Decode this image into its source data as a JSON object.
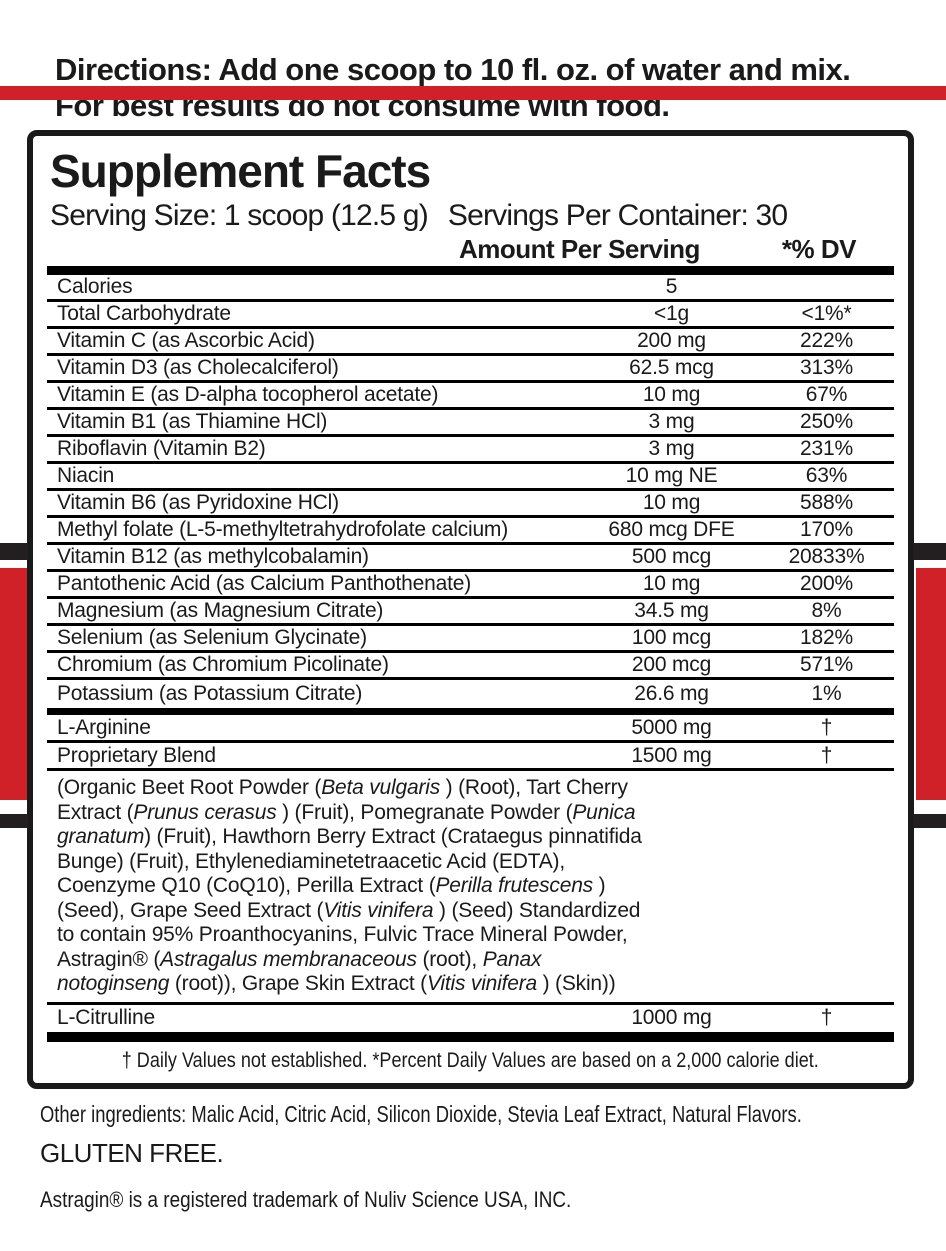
{
  "colors": {
    "accent_red": "#cf2127",
    "bar_black": "#000000",
    "text_black": "#1a1a1a"
  },
  "directions": {
    "line1": "Directions: Add one scoop to 10 fl. oz. of water and mix.",
    "line2": "For best results do not consume with food."
  },
  "facts": {
    "title": "Supplement Facts",
    "serving_size": "Serving Size: 1 scoop (12.5 g)",
    "servings_per_container": "Servings Per Container: 30",
    "col_amount": "Amount Per Serving",
    "col_dv": "*% DV",
    "rows": [
      {
        "name": "Calories",
        "amount": "5",
        "dv": ""
      },
      {
        "name": "Total Carbohydrate",
        "amount": "<1g",
        "dv": "<1%*"
      },
      {
        "name": "Vitamin C (as Ascorbic Acid)",
        "amount": "200 mg",
        "dv": "222%"
      },
      {
        "name": "Vitamin D3 (as Cholecalciferol)",
        "amount": "62.5 mcg",
        "dv": "313%"
      },
      {
        "name": "Vitamin E (as D-alpha tocopherol acetate)",
        "amount": "10 mg",
        "dv": "67%"
      },
      {
        "name": "Vitamin B1 (as Thiamine HCl)",
        "amount": "3 mg",
        "dv": "250%"
      },
      {
        "name": "Riboflavin (Vitamin B2)",
        "amount": "3 mg",
        "dv": "231%"
      },
      {
        "name": "Niacin",
        "amount": "10 mg NE",
        "dv": "63%"
      },
      {
        "name": "Vitamin B6 (as Pyridoxine HCl)",
        "amount": "10 mg",
        "dv": "588%"
      },
      {
        "name": "Methyl folate (L-5-methyltetrahydrofolate calcium)",
        "amount": "680 mcg DFE",
        "dv": "170%"
      },
      {
        "name": "Vitamin B12 (as methylcobalamin)",
        "amount": "500 mcg",
        "dv": "20833%"
      },
      {
        "name": "Pantothenic Acid (as Calcium Panthothenate)",
        "amount": "10 mg",
        "dv": "200%"
      },
      {
        "name": "Magnesium (as Magnesium Citrate)",
        "amount": "34.5 mg",
        "dv": "8%"
      },
      {
        "name": "Selenium (as Selenium Glycinate)",
        "amount": "100 mcg",
        "dv": "182%"
      },
      {
        "name": "Chromium (as Chromium Picolinate)",
        "amount": "200 mcg",
        "dv": "571%"
      },
      {
        "name": "Potassium (as Potassium Citrate)",
        "amount": "26.6 mg",
        "dv": "1%"
      },
      {
        "name": "L-Arginine",
        "amount": "5000 mg",
        "dv": "†"
      },
      {
        "name": "Proprietary Blend",
        "amount": "1500 mg",
        "dv": "†"
      },
      {
        "name": "L-Citrulline",
        "amount": "1000 mg",
        "dv": "†"
      }
    ],
    "blend_description": [
      [
        {
          "t": "(Organic Beet Root Powder ("
        },
        {
          "t": "Beta vulgaris",
          "i": true
        },
        {
          "t": " ) (Root), Tart Cherry"
        }
      ],
      [
        {
          "t": "Extract ("
        },
        {
          "t": "Prunus cerasus",
          "i": true
        },
        {
          "t": " ) (Fruit), Pomegranate Powder ("
        },
        {
          "t": "Punica",
          "i": true
        }
      ],
      [
        {
          "t": "granatum",
          "i": true
        },
        {
          "t": ") (Fruit), Hawthorn Berry Extract (Crataegus pinnatifida"
        }
      ],
      [
        {
          "t": "Bunge) (Fruit), Ethylenediaminetetraacetic Acid (EDTA),"
        }
      ],
      [
        {
          "t": "Coenzyme Q10 (CoQ10), Perilla Extract ("
        },
        {
          "t": "Perilla frutescens",
          "i": true
        },
        {
          "t": " )"
        }
      ],
      [
        {
          "t": "(Seed), Grape Seed Extract ("
        },
        {
          "t": "Vitis vinifera",
          "i": true
        },
        {
          "t": " ) (Seed) Standardized"
        }
      ],
      [
        {
          "t": "to contain 95% Proanthocyanins,  Fulvic Trace Mineral Powder,"
        }
      ],
      [
        {
          "t": "Astragin® ("
        },
        {
          "t": "Astragalus membranaceous",
          "i": true
        },
        {
          "t": "  (root), "
        },
        {
          "t": "Panax",
          "i": true
        }
      ],
      [
        {
          "t": "notoginseng",
          "i": true
        },
        {
          "t": "  (root)), Grape Skin Extract ("
        },
        {
          "t": "Vitis vinifera",
          "i": true
        },
        {
          "t": " ) (Skin))"
        }
      ]
    ],
    "footnote": "† Daily Values not established.  *Percent Daily Values are based on a 2,000 calorie diet."
  },
  "bottom": {
    "other_ingredients": "Other ingredients:  Malic Acid, Citric Acid, Silicon Dioxide, Stevia Leaf Extract, Natural Flavors.",
    "gluten_free": "GLUTEN FREE.",
    "trademark": "Astragin® is a registered trademark of Nuliv Science USA, INC."
  }
}
